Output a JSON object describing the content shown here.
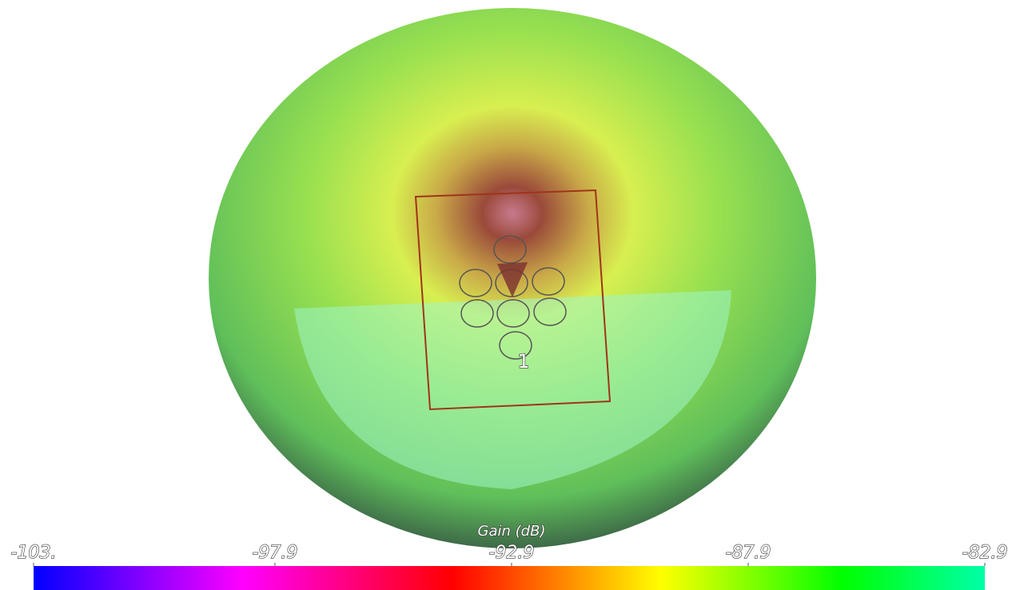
{
  "colorbar": {
    "title": "Gain (dB)",
    "range": [
      -103,
      -82.9
    ],
    "ticks": [
      {
        "value": -103,
        "label": "-103."
      },
      -97.9,
      -92.9,
      -87.9,
      -82.9
    ]
  },
  "marker_label": "1"
}
